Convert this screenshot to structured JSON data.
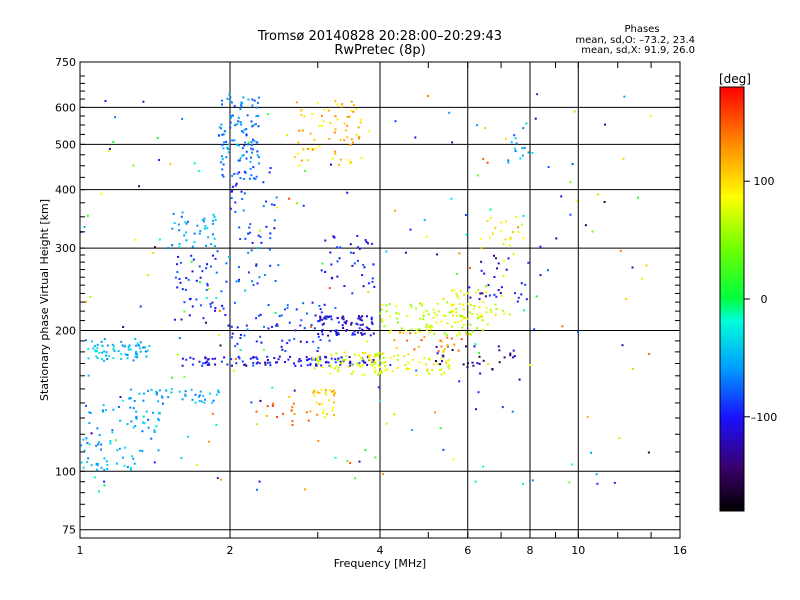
{
  "chart_data": {
    "type": "scatter",
    "title": "Tromsø 20140828 20:28:00–20:29:43",
    "subtitle": "RwPretec (8p)",
    "xlabel": "Frequency [MHz]",
    "ylabel": "Stationary phase Virtual Height [km]",
    "x_scale": "log",
    "y_scale": "log",
    "xlim": [
      1,
      16
    ],
    "ylim": [
      72,
      750
    ],
    "x_ticks": [
      1,
      2,
      4,
      6,
      8,
      10,
      16
    ],
    "x_tick_labels": [
      "1",
      "2",
      "4",
      "6",
      "8",
      "10",
      "16"
    ],
    "y_ticks": [
      75,
      100,
      200,
      300,
      400,
      500,
      600,
      750
    ],
    "y_tick_labels": [
      "75",
      "100",
      "200",
      "300",
      "400",
      "500",
      "600",
      "750"
    ],
    "grid": true,
    "phases_box": {
      "title": "Phases",
      "line1": "mean, sd,O: –73.2, 23.4",
      "line2": "mean, sd,X:  91.9, 26.0"
    },
    "colorbar": {
      "unit": "[deg]",
      "range": [
        -180,
        180
      ],
      "ticks": [
        100,
        0,
        -100
      ],
      "tick_labels": [
        "100",
        "0",
        "–100"
      ]
    },
    "point_clusters": [
      {
        "f": [
          1.0,
          1.38
        ],
        "h": [
          172,
          192
        ],
        "phase": -50,
        "n": 70
      },
      {
        "f": [
          1.0,
          1.45
        ],
        "h": [
          110,
          140
        ],
        "phase": -55,
        "n": 60
      },
      {
        "f": [
          1.0,
          1.3
        ],
        "h": [
          100,
          108
        ],
        "phase": -50,
        "n": 25
      },
      {
        "f": [
          1.25,
          1.9
        ],
        "h": [
          140,
          150
        ],
        "phase": -55,
        "n": 45
      },
      {
        "f": [
          1.5,
          1.9
        ],
        "h": [
          300,
          360
        ],
        "phase": -60,
        "n": 40
      },
      {
        "f": [
          1.55,
          2.0
        ],
        "h": [
          210,
          300
        ],
        "phase": -100,
        "n": 50
      },
      {
        "f": [
          1.9,
          2.3
        ],
        "h": [
          420,
          640
        ],
        "phase": -70,
        "n": 110
      },
      {
        "f": [
          2.0,
          2.5
        ],
        "h": [
          250,
          450
        ],
        "phase": -90,
        "n": 60
      },
      {
        "f": [
          1.6,
          3.9
        ],
        "h": [
          168,
          176
        ],
        "phase": -110,
        "n": 120
      },
      {
        "f": [
          2.0,
          3.2
        ],
        "h": [
          180,
          230
        ],
        "phase": -95,
        "n": 60
      },
      {
        "f": [
          2.7,
          3.8
        ],
        "h": [
          450,
          620
        ],
        "phase": 110,
        "n": 70
      },
      {
        "f": [
          3.0,
          3.9
        ],
        "h": [
          195,
          215
        ],
        "phase": -120,
        "n": 80
      },
      {
        "f": [
          3.0,
          3.9
        ],
        "h": [
          240,
          320
        ],
        "phase": -110,
        "n": 40
      },
      {
        "f": [
          2.9,
          4.1
        ],
        "h": [
          160,
          180
        ],
        "phase": 80,
        "n": 60
      },
      {
        "f": [
          2.9,
          3.25
        ],
        "h": [
          130,
          150
        ],
        "phase": 110,
        "n": 30
      },
      {
        "f": [
          2.3,
          2.9
        ],
        "h": [
          125,
          140
        ],
        "phase": 140,
        "n": 15
      },
      {
        "f": [
          4.0,
          6.5
        ],
        "h": [
          195,
          230
        ],
        "phase": 70,
        "n": 90
      },
      {
        "f": [
          5.3,
          7.3
        ],
        "h": [
          210,
          245
        ],
        "phase": 80,
        "n": 50
      },
      {
        "f": [
          3.8,
          5.6
        ],
        "h": [
          160,
          180
        ],
        "phase": 80,
        "n": 60
      },
      {
        "f": [
          5.0,
          7.5
        ],
        "h": [
          165,
          185
        ],
        "phase": -140,
        "n": 30
      },
      {
        "f": [
          4.2,
          6.0
        ],
        "h": [
          180,
          200
        ],
        "phase": 130,
        "n": 25
      },
      {
        "f": [
          6.3,
          7.8
        ],
        "h": [
          280,
          350
        ],
        "phase": 90,
        "n": 20
      },
      {
        "f": [
          6.0,
          8.0
        ],
        "h": [
          230,
          290
        ],
        "phase": -120,
        "n": 30
      },
      {
        "f": [
          7.2,
          8.0
        ],
        "h": [
          450,
          560
        ],
        "phase": -60,
        "n": 15
      },
      {
        "f": [
          1.0,
          14.0
        ],
        "h": [
          90,
          650
        ],
        "phase": 0,
        "n": 220,
        "mixed": true
      }
    ]
  }
}
